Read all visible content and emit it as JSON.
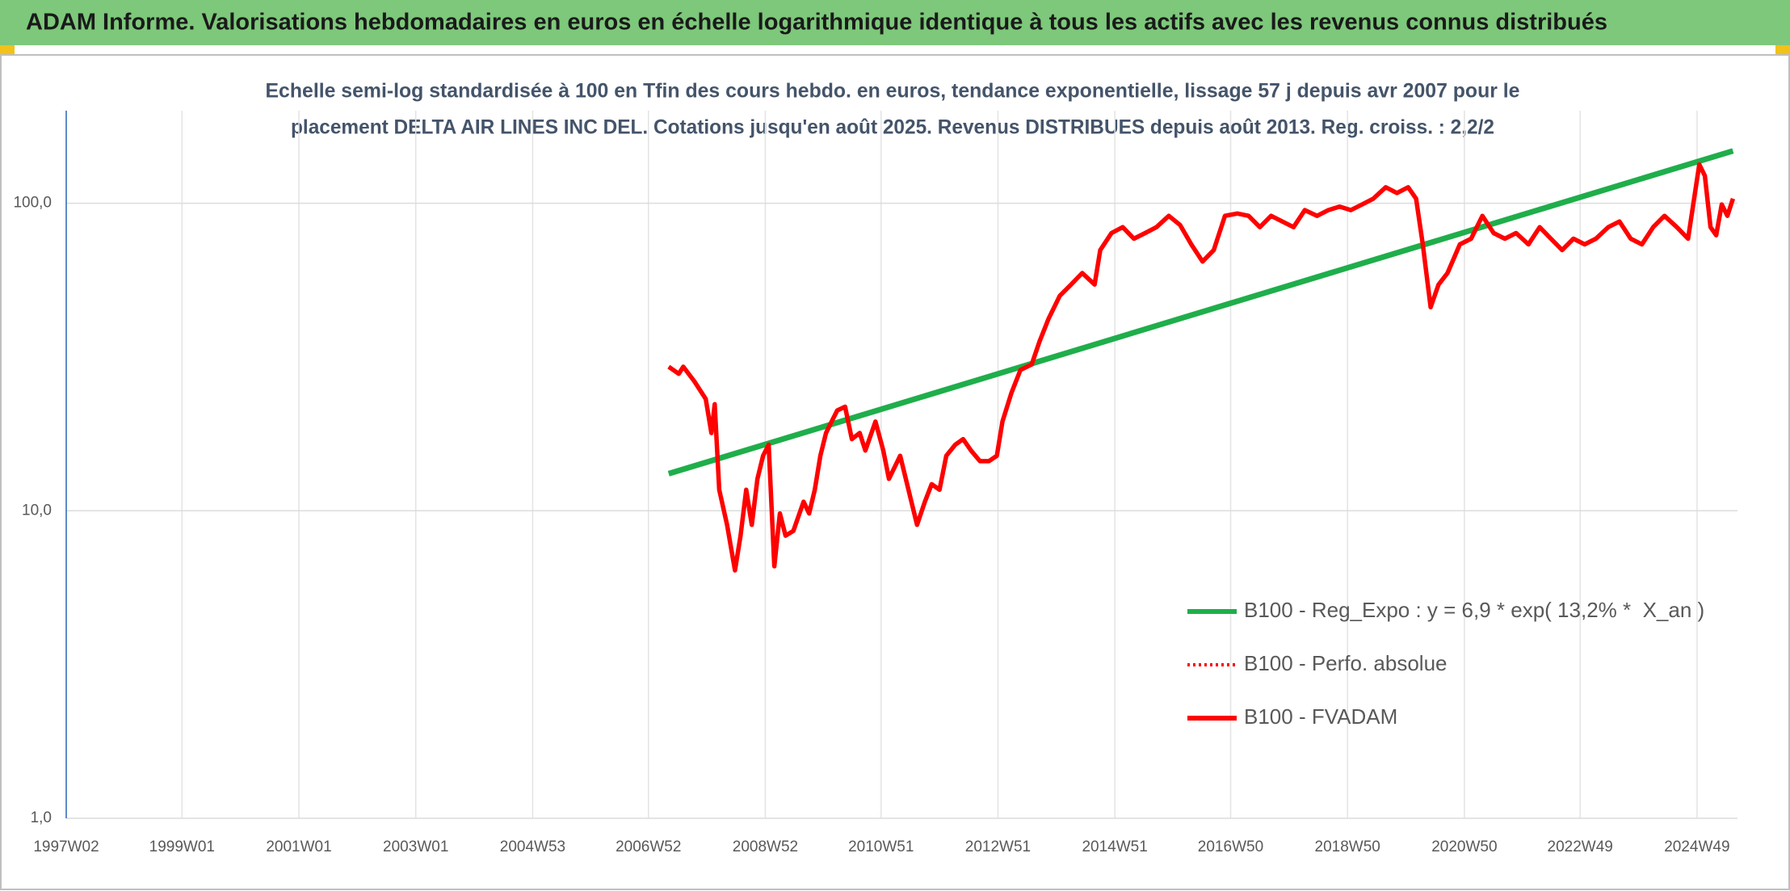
{
  "chart_data": {
    "type": "line",
    "title": "ADAM Informe. Valorisations hebdomadaires en euros en échelle logarithmique identique à tous les actifs avec les revenus connus distribués",
    "subtitle": [
      "Echelle semi-log standardisée à 100 en Tfin des cours hebdo. en euros, tendance exponentielle, lissage 57 j depuis avr 2007 pour le",
      "placement DELTA AIR LINES INC DEL. Cotations jusqu'en août 2025. Revenus DISTRIBUES depuis août 2013. Reg. croiss. : 2,2/2"
    ],
    "log_y": true,
    "grid": true,
    "legend": "lower right",
    "ylim": [
      1,
      200
    ],
    "yticks": [
      {
        "value": 1,
        "label": "1,0"
      },
      {
        "value": 10,
        "label": "10,0"
      },
      {
        "value": 100,
        "label": "100,0"
      }
    ],
    "xlim": [
      "1997W02",
      "2025W33"
    ],
    "xticks": [
      "1997W02",
      "1999W01",
      "2001W01",
      "2003W01",
      "2004W53",
      "2006W52",
      "2008W52",
      "2010W51",
      "2012W51",
      "2014W51",
      "2016W50",
      "2018W50",
      "2020W50",
      "2022W49",
      "2024W49"
    ],
    "series": [
      {
        "name": "B100 - Reg_Expo : y = 6,9 * exp( 13,2% *  X_an )",
        "color": "#1fae4b",
        "style": "solid",
        "x": [
          "2007W18",
          "2025W29"
        ],
        "values": [
          13.2,
          148
        ]
      },
      {
        "name": "B100 - Perfo. absolue",
        "color": "#ff0000",
        "style": "dotted",
        "x": [],
        "values": []
      },
      {
        "name": "B100 - FVADAM",
        "color": "#ff0000",
        "style": "solid",
        "x": [
          "2007W18",
          "2007W27",
          "2007W31",
          "2007W41",
          "2007W51",
          "2008W04",
          "2008W07",
          "2008W11",
          "2008W18",
          "2008W25",
          "2008W30",
          "2008W35",
          "2008W40",
          "2008W45",
          "2008W50",
          "2009W03",
          "2009W08",
          "2009W13",
          "2009W18",
          "2009W25",
          "2009W34",
          "2009W39",
          "2009W44",
          "2009W49",
          "2010W02",
          "2010W07",
          "2010W12",
          "2010W19",
          "2010W25",
          "2010W32",
          "2010W37",
          "2010W46",
          "2011W01",
          "2011W06",
          "2011W16",
          "2011W21",
          "2011W26",
          "2011W31",
          "2011W38",
          "2011W44",
          "2011W51",
          "2012W05",
          "2012W13",
          "2012W20",
          "2012W27",
          "2012W35",
          "2012W43",
          "2012W50",
          "2013W03",
          "2013W11",
          "2013W19",
          "2013W29",
          "2013W36",
          "2013W44",
          "2014W02",
          "2014W12",
          "2014W22",
          "2014W33",
          "2014W38",
          "2014W48",
          "2015W06",
          "2015W16",
          "2015W26",
          "2015W36",
          "2015W47",
          "2016W05",
          "2016W15",
          "2016W25",
          "2016W35",
          "2016W45",
          "2017W04",
          "2017W14",
          "2017W24",
          "2017W34",
          "2017W44",
          "2018W02",
          "2018W12",
          "2018W23",
          "2018W33",
          "2018W43",
          "2019W01",
          "2019W11",
          "2019W21",
          "2019W32",
          "2019W42",
          "2019W52",
          "2020W07",
          "2020W13",
          "2020W20",
          "2020W27",
          "2020W35",
          "2020W46",
          "2021W04",
          "2021W14",
          "2021W24",
          "2021W34",
          "2021W44",
          "2022W03",
          "2022W13",
          "2022W23",
          "2022W33",
          "2022W43",
          "2023W01",
          "2023W11",
          "2023W22",
          "2023W32",
          "2023W42",
          "2023W52",
          "2024W10",
          "2024W20",
          "2024W31",
          "2024W41",
          "2024W51",
          "2025W04",
          "2025W09",
          "2025W14",
          "2025W19",
          "2025W24",
          "2025W29"
        ],
        "values": [
          29.4,
          27.9,
          29.4,
          26.3,
          23.1,
          17.9,
          22.2,
          11.7,
          9.0,
          6.4,
          8.3,
          11.7,
          9.0,
          12.7,
          15.1,
          16.4,
          6.6,
          9.8,
          8.3,
          8.6,
          10.7,
          9.8,
          11.7,
          15.1,
          17.9,
          19.5,
          21.2,
          21.8,
          17.1,
          17.9,
          15.7,
          19.5,
          15.7,
          12.7,
          15.1,
          12.7,
          10.7,
          9.0,
          10.7,
          12.2,
          11.7,
          15.1,
          16.4,
          17.1,
          15.7,
          14.5,
          14.5,
          15.1,
          19.5,
          24.2,
          28.7,
          29.9,
          35.5,
          42.1,
          50.0,
          54.4,
          59.3,
          54.4,
          70.4,
          80.0,
          83.6,
          76.7,
          80.0,
          83.6,
          91.0,
          85.0,
          73.5,
          64.6,
          70.4,
          91.0,
          92.6,
          91.0,
          83.6,
          91.0,
          87.2,
          83.6,
          95.0,
          91.0,
          95.0,
          97.5,
          95.0,
          99.1,
          103.5,
          112.7,
          108.0,
          112.7,
          103.5,
          73.5,
          45.9,
          54.4,
          59.3,
          73.5,
          76.7,
          91.0,
          80.0,
          76.7,
          80.0,
          73.5,
          83.6,
          76.7,
          70.4,
          76.7,
          73.5,
          76.7,
          83.6,
          87.2,
          76.7,
          73.5,
          83.6,
          91.0,
          83.6,
          76.7,
          133.7,
          122.8,
          83.6,
          78.7,
          99.1,
          91.0,
          103.5
        ]
      }
    ]
  }
}
